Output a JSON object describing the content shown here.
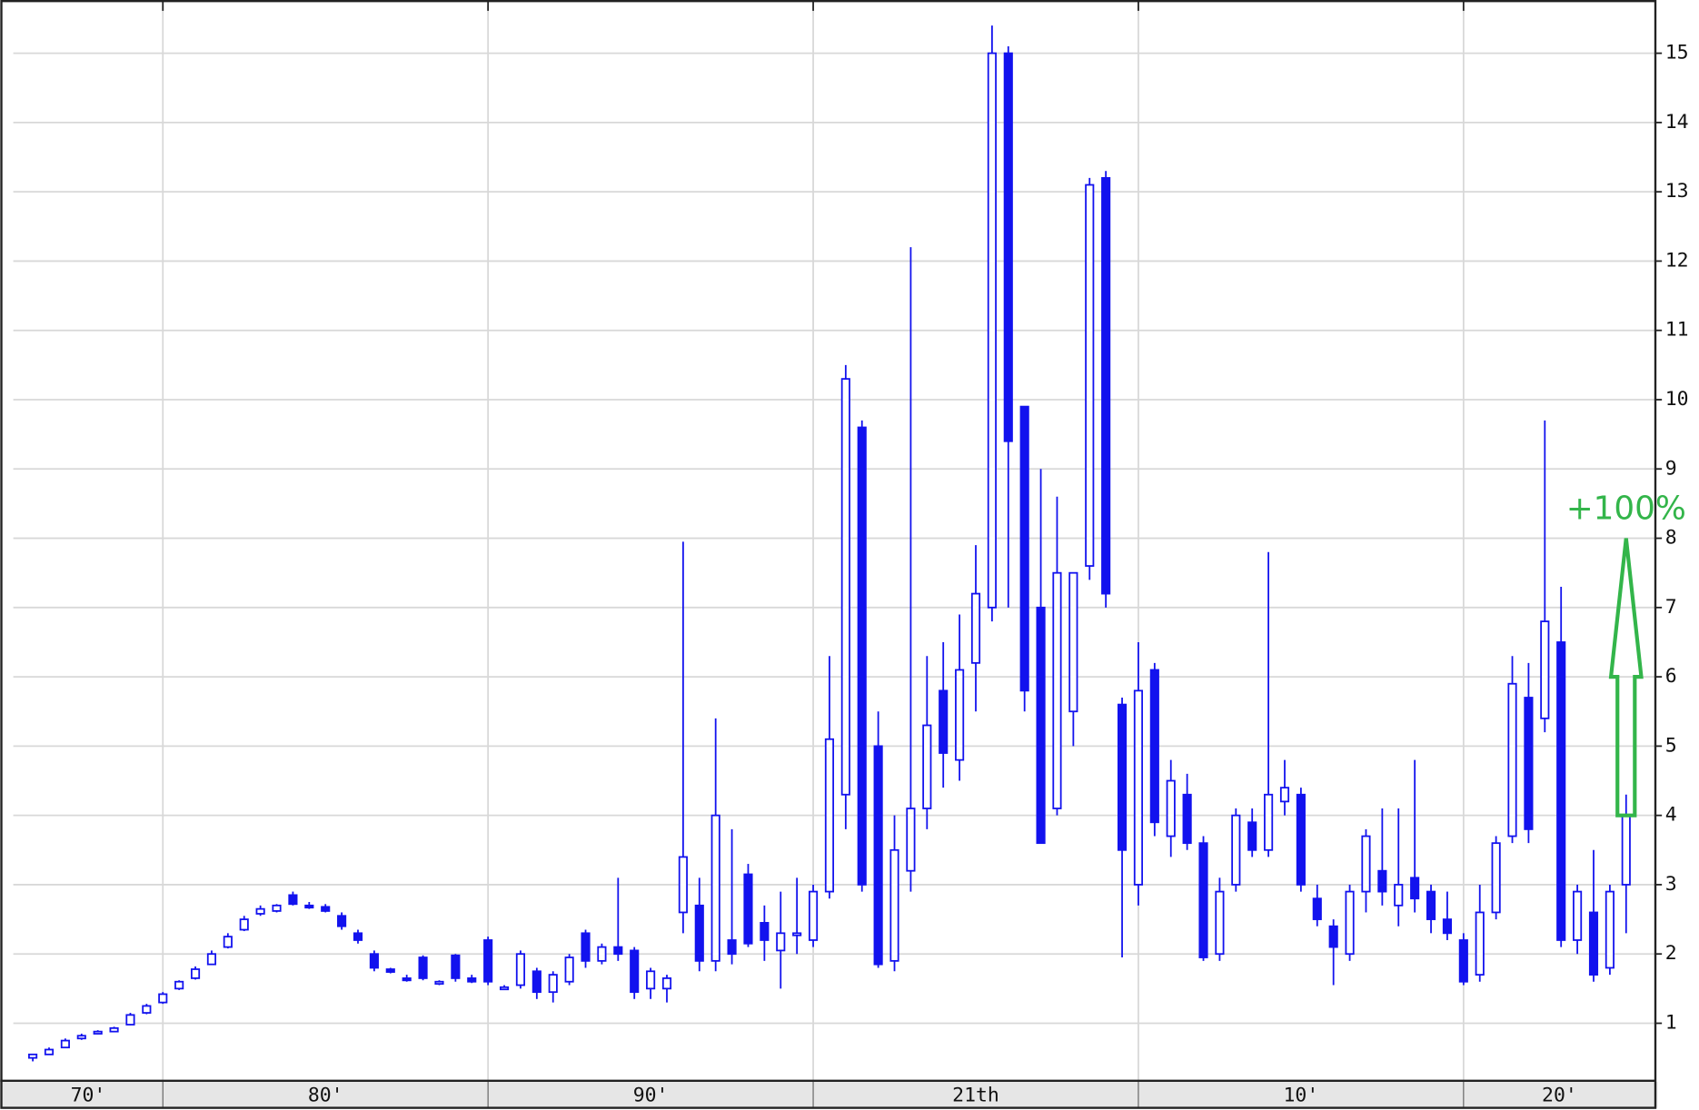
{
  "chart_data": {
    "type": "candlestick",
    "color": "#1212ee",
    "grid": true,
    "x_labels": [
      "70'",
      "80'",
      "90'",
      "21th",
      "10'",
      "20'"
    ],
    "xlim": [
      1975.4,
      2025.9
    ],
    "xticks": [
      1980,
      1990,
      2000,
      2010,
      2020
    ],
    "ylim": [
      0.17,
      15.69
    ],
    "yticks": [
      1,
      2,
      3,
      4,
      5,
      6,
      7,
      8,
      9,
      10,
      11,
      12,
      13,
      14,
      15
    ],
    "x": [
      1976,
      1976.5,
      1977,
      1977.5,
      1978,
      1978.5,
      1979,
      1979.5,
      1980,
      1980.5,
      1981,
      1981.5,
      1982,
      1982.5,
      1983,
      1983.5,
      1984,
      1984.5,
      1985,
      1985.5,
      1986,
      1986.5,
      1987,
      1987.5,
      1988,
      1988.5,
      1989,
      1989.5,
      1990,
      1990.5,
      1991,
      1991.5,
      1992,
      1992.5,
      1993,
      1993.5,
      1994,
      1994.5,
      1995,
      1995.5,
      1996,
      1996.5,
      1997,
      1997.5,
      1998,
      1998.5,
      1999,
      1999.5,
      2000,
      2000.5,
      2001,
      2001.5,
      2002,
      2002.5,
      2003,
      2003.5,
      2004,
      2004.5,
      2005,
      2005.5,
      2006,
      2006.5,
      2007,
      2007.5,
      2008,
      2008.5,
      2009,
      2009.5,
      2010,
      2010.5,
      2011,
      2011.5,
      2012,
      2012.5,
      2013,
      2013.5,
      2014,
      2014.5,
      2015,
      2015.5,
      2016,
      2016.5,
      2017,
      2017.5,
      2018,
      2018.5,
      2019,
      2019.5,
      2020,
      2020.5,
      2021,
      2021.5,
      2022,
      2022.5,
      2023,
      2023.5,
      2024,
      2024.5,
      2025
    ],
    "open": [
      0.5,
      0.55,
      0.65,
      0.78,
      0.85,
      0.88,
      0.98,
      1.15,
      1.3,
      1.5,
      1.65,
      1.85,
      2.1,
      2.35,
      2.58,
      2.62,
      2.85,
      2.7,
      2.68,
      2.55,
      2.3,
      2.0,
      1.78,
      1.65,
      1.95,
      1.58,
      1.98,
      1.65,
      2.2,
      1.5,
      1.55,
      1.75,
      1.45,
      1.6,
      2.3,
      1.9,
      2.1,
      2.05,
      1.5,
      1.5,
      2.6,
      2.7,
      1.9,
      2.2,
      3.15,
      2.45,
      2.05,
      2.3,
      2.2,
      2.9,
      4.3,
      9.6,
      5.0,
      1.9,
      3.2,
      4.1,
      5.8,
      4.8,
      6.2,
      7.0,
      15.0,
      9.9,
      7.0,
      4.1,
      5.5,
      7.6,
      13.2,
      5.6,
      3.0,
      6.1,
      3.7,
      4.3,
      3.6,
      2.0,
      3.0,
      3.9,
      3.5,
      4.2,
      4.3,
      2.8,
      2.4,
      2.0,
      2.9,
      3.2,
      2.7,
      3.1,
      2.9,
      2.5,
      2.2,
      1.7,
      2.6,
      3.7,
      5.7,
      5.4,
      6.5,
      2.2,
      2.6,
      1.8,
      3.0
    ],
    "high": [
      0.55,
      0.65,
      0.78,
      0.85,
      0.9,
      0.95,
      1.15,
      1.28,
      1.45,
      1.62,
      1.82,
      2.05,
      2.3,
      2.55,
      2.7,
      2.72,
      2.9,
      2.75,
      2.72,
      2.6,
      2.35,
      2.05,
      1.8,
      1.7,
      1.98,
      1.62,
      2.0,
      1.7,
      2.25,
      1.55,
      2.05,
      1.8,
      1.75,
      2.0,
      2.35,
      2.15,
      3.1,
      2.1,
      1.8,
      1.7,
      7.95,
      3.1,
      5.4,
      3.8,
      3.3,
      2.7,
      2.9,
      3.1,
      3.0,
      6.3,
      10.5,
      9.7,
      5.5,
      4.0,
      12.2,
      6.3,
      6.5,
      6.9,
      7.9,
      15.4,
      15.1,
      9.9,
      9.0,
      8.6,
      7.5,
      13.2,
      13.3,
      5.7,
      6.5,
      6.2,
      4.8,
      4.6,
      3.7,
      3.1,
      4.1,
      4.1,
      7.8,
      4.8,
      4.4,
      3.0,
      2.5,
      3.0,
      3.8,
      4.1,
      4.1,
      4.8,
      3.0,
      2.9,
      2.3,
      3.0,
      3.7,
      6.3,
      6.2,
      9.7,
      7.3,
      3.0,
      3.5,
      3.0,
      4.3
    ],
    "low": [
      0.45,
      0.55,
      0.65,
      0.76,
      0.84,
      0.87,
      0.97,
      1.13,
      1.28,
      1.48,
      1.63,
      1.84,
      2.08,
      2.33,
      2.55,
      2.6,
      2.7,
      2.65,
      2.6,
      2.35,
      2.15,
      1.75,
      1.72,
      1.6,
      1.62,
      1.55,
      1.6,
      1.58,
      1.55,
      1.48,
      1.5,
      1.35,
      1.3,
      1.55,
      1.8,
      1.85,
      1.9,
      1.35,
      1.35,
      1.3,
      2.3,
      1.75,
      1.75,
      1.85,
      2.1,
      1.9,
      1.5,
      2.0,
      2.1,
      2.8,
      3.8,
      2.9,
      1.8,
      1.75,
      2.9,
      3.8,
      4.4,
      4.5,
      5.5,
      6.8,
      7.0,
      5.5,
      3.6,
      4.0,
      5.0,
      7.4,
      7.0,
      1.95,
      2.7,
      3.7,
      3.4,
      3.5,
      1.9,
      1.9,
      2.9,
      3.4,
      3.4,
      4.0,
      2.9,
      2.4,
      1.55,
      1.9,
      2.6,
      2.7,
      2.4,
      2.6,
      2.3,
      2.2,
      1.55,
      1.6,
      2.5,
      3.6,
      3.6,
      5.2,
      2.1,
      2.0,
      1.6,
      1.7,
      2.3
    ],
    "close": [
      0.55,
      0.62,
      0.75,
      0.82,
      0.88,
      0.93,
      1.12,
      1.25,
      1.42,
      1.6,
      1.78,
      2.0,
      2.25,
      2.5,
      2.65,
      2.7,
      2.72,
      2.68,
      2.62,
      2.4,
      2.2,
      1.8,
      1.74,
      1.62,
      1.65,
      1.6,
      1.65,
      1.6,
      1.6,
      1.52,
      2.0,
      1.45,
      1.7,
      1.95,
      1.9,
      2.1,
      2.0,
      1.45,
      1.75,
      1.65,
      3.4,
      1.9,
      4.0,
      2.0,
      2.15,
      2.2,
      2.3,
      2.3,
      2.9,
      5.1,
      10.3,
      3.0,
      1.85,
      3.5,
      4.1,
      5.3,
      4.9,
      6.1,
      7.2,
      15.0,
      9.4,
      5.8,
      3.6,
      7.5,
      7.5,
      13.1,
      7.2,
      3.5,
      5.8,
      3.9,
      4.5,
      3.6,
      1.95,
      2.9,
      4.0,
      3.5,
      4.3,
      4.4,
      3.0,
      2.5,
      2.1,
      2.9,
      3.7,
      2.9,
      3.0,
      2.8,
      2.5,
      2.3,
      1.6,
      2.6,
      3.6,
      5.9,
      3.8,
      6.8,
      2.2,
      2.9,
      1.7,
      2.9,
      4.0
    ],
    "annotation": {
      "text": "+100%",
      "x": 2025,
      "from": 4,
      "to": 8,
      "color": "#33b54a"
    }
  }
}
